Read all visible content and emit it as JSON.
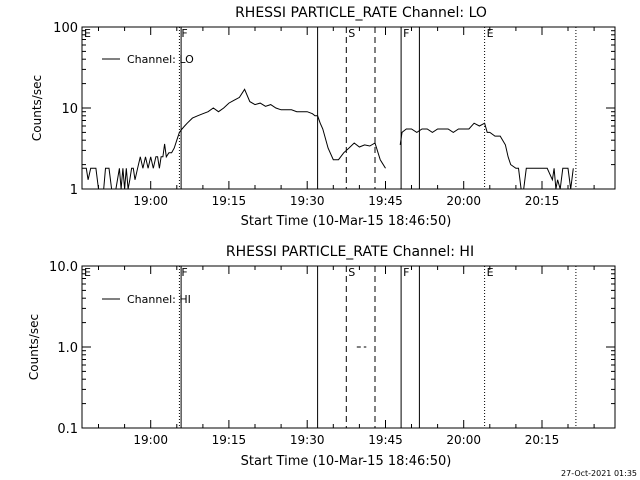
{
  "timestamp": "27-Oct-2021 01:35",
  "chart_data": [
    {
      "type": "line",
      "title": "RHESSI PARTICLE_RATE Channel: LO",
      "xlabel": "Start Time (10-Mar-15 18:46:50)",
      "ylabel": "Counts/sec",
      "yscale": "log",
      "ylim": [
        1,
        100
      ],
      "xlim": [
        "18:46:50",
        "20:29:00"
      ],
      "x_tick_labels": [
        "19:00",
        "19:15",
        "19:30",
        "19:45",
        "20:00",
        "20:15"
      ],
      "y_tick_labels": [
        "1",
        "10",
        "100"
      ],
      "legend": {
        "label": "Channel: LO",
        "position": "top-left"
      },
      "markers": [
        {
          "label": "E",
          "time": "18:46:50",
          "style": "dotted"
        },
        {
          "label": "F",
          "time": "19:05:30",
          "style": "dotted"
        },
        {
          "label": "",
          "time": "19:05:50",
          "style": "solid"
        },
        {
          "label": "",
          "time": "19:32:00",
          "style": "solid"
        },
        {
          "label": "S",
          "time": "19:37:30",
          "style": "dashed"
        },
        {
          "label": "",
          "time": "19:43:00",
          "style": "dashed"
        },
        {
          "label": "F",
          "time": "19:48:00",
          "style": "solid"
        },
        {
          "label": "",
          "time": "19:51:30",
          "style": "solid"
        },
        {
          "label": "E",
          "time": "20:04:00",
          "style": "dotted"
        },
        {
          "label": "",
          "time": "20:21:30",
          "style": "dotted"
        }
      ],
      "series": [
        {
          "name": "Channel: LO",
          "segments": [
            {
              "x": [
                "18:46:50",
                "18:47:40",
                "18:48:00",
                "18:48:30",
                "18:49:00",
                "18:49:30",
                "18:50:00",
                "18:51:00",
                "18:51:20",
                "18:52:00",
                "18:52:30",
                "18:53:20",
                "18:54:00",
                "18:54:20",
                "18:54:40",
                "18:55:00",
                "18:55:20",
                "18:55:40",
                "18:56:00",
                "18:56:20",
                "18:56:40",
                "18:57:00",
                "18:57:30",
                "18:58:00",
                "18:58:30",
                "18:59:00",
                "18:59:30",
                "19:00:00",
                "19:00:30",
                "19:01:00",
                "19:01:20",
                "19:01:40",
                "19:02:00",
                "19:02:20",
                "19:02:40",
                "19:03:00",
                "19:03:30",
                "19:04:00",
                "19:04:30",
                "19:05:00",
                "19:05:30",
                "19:06:00",
                "19:06:30",
                "19:07:00",
                "19:08:00",
                "19:09:00",
                "19:10:00",
                "19:11:00",
                "19:12:00",
                "19:13:00",
                "19:14:00",
                "19:15:00",
                "19:16:00",
                "19:17:00",
                "19:18:00",
                "19:19:00",
                "19:20:00",
                "19:21:00",
                "19:22:00",
                "19:23:00",
                "19:24:00",
                "19:25:00",
                "19:26:00",
                "19:27:00",
                "19:28:00",
                "19:29:00",
                "19:30:00",
                "19:31:00",
                "19:31:30",
                "19:32:00",
                "19:32:30",
                "19:33:00",
                "19:34:00",
                "19:35:00",
                "19:36:00",
                "19:37:00",
                "19:38:00",
                "19:39:00",
                "19:40:00",
                "19:41:00",
                "19:42:00",
                "19:43:00",
                "19:44:00",
                "19:45:00"
              ],
              "y": [
                1.8,
                1.8,
                1.3,
                1.8,
                1.8,
                1.8,
                1,
                1,
                1.8,
                1.8,
                1,
                1,
                1.8,
                1,
                1.8,
                1,
                1.8,
                1,
                1.3,
                1.8,
                1.8,
                1.3,
                1.8,
                2.5,
                1.8,
                2.5,
                1.8,
                2.5,
                1.8,
                2.5,
                2.5,
                1.8,
                2.5,
                2.5,
                3.6,
                2.5,
                2.8,
                2.8,
                3.2,
                4,
                5,
                5.5,
                6,
                6.5,
                7.5,
                8,
                8.5,
                9,
                10,
                9,
                10,
                11.5,
                12.5,
                13.5,
                17,
                12,
                11,
                11.5,
                10.5,
                11,
                10,
                9.5,
                9.5,
                9.5,
                9,
                9,
                9,
                8.5,
                8,
                8,
                6.5,
                5.5,
                3.2,
                2.3,
                2.3,
                2.8,
                3.2,
                3.7,
                3.3,
                3.5,
                3.4,
                3.7,
                2.3,
                1.8
              ]
            },
            {
              "x": [
                "19:47:50",
                "19:48:10",
                "19:49:00",
                "19:50:00",
                "19:51:00",
                "19:52:00",
                "19:53:00",
                "19:54:00",
                "19:55:00",
                "19:56:00",
                "19:57:00",
                "19:58:00",
                "19:59:00",
                "20:00:00",
                "20:01:00",
                "20:02:00",
                "20:03:00",
                "20:04:00",
                "20:04:30",
                "20:05:00",
                "20:06:00",
                "20:07:00",
                "20:08:00",
                "20:08:30",
                "20:09:00",
                "20:10:00",
                "20:10:30",
                "20:11:00",
                "20:11:30",
                "20:12:00",
                "20:12:30",
                "20:13:00",
                "20:13:30",
                "20:14:00",
                "20:14:30",
                "20:15:00",
                "20:16:00",
                "20:17:00",
                "20:17:20",
                "20:17:40",
                "20:18:00",
                "20:18:30",
                "20:19:00",
                "20:19:30",
                "20:20:00",
                "20:20:30",
                "20:21:00"
              ],
              "y": [
                3.5,
                5,
                5.5,
                5.5,
                5,
                5.5,
                5.5,
                5,
                5.5,
                5.5,
                5.5,
                5,
                5.5,
                5.5,
                5.5,
                6.5,
                6,
                6.5,
                5,
                5,
                4.5,
                4.5,
                3.5,
                2.5,
                2,
                1.8,
                1.8,
                1,
                1,
                1.8,
                1.8,
                1.8,
                1.8,
                1.8,
                1.8,
                1.8,
                1.8,
                1.3,
                1.8,
                1,
                1.3,
                1,
                1.8,
                1.8,
                1.8,
                1,
                1.8
              ]
            }
          ]
        }
      ]
    },
    {
      "type": "line",
      "title": "RHESSI PARTICLE_RATE Channel: HI",
      "xlabel": "Start Time (10-Mar-15 18:46:50)",
      "ylabel": "Counts/sec",
      "yscale": "log",
      "ylim": [
        0.1,
        10
      ],
      "xlim": [
        "18:46:50",
        "20:29:00"
      ],
      "x_tick_labels": [
        "19:00",
        "19:15",
        "19:30",
        "19:45",
        "20:00",
        "20:15"
      ],
      "y_tick_labels": [
        "0.1",
        "1.0",
        "10.0"
      ],
      "legend": {
        "label": "Channel: HI",
        "position": "top-left"
      },
      "markers": [
        {
          "label": "E",
          "time": "18:46:50",
          "style": "dotted"
        },
        {
          "label": "F",
          "time": "19:05:30",
          "style": "dotted"
        },
        {
          "label": "",
          "time": "19:05:50",
          "style": "solid"
        },
        {
          "label": "",
          "time": "19:32:00",
          "style": "solid"
        },
        {
          "label": "S",
          "time": "19:37:30",
          "style": "dashed"
        },
        {
          "label": "",
          "time": "19:43:00",
          "style": "dashed"
        },
        {
          "label": "F",
          "time": "19:48:00",
          "style": "solid"
        },
        {
          "label": "",
          "time": "19:51:30",
          "style": "solid"
        },
        {
          "label": "E",
          "time": "20:04:00",
          "style": "dotted"
        },
        {
          "label": "",
          "time": "20:21:30",
          "style": "dotted"
        }
      ],
      "series": [
        {
          "name": "Channel: HI",
          "segments": [
            {
              "x": [
                "19:39:30",
                "19:41:20"
              ],
              "y": [
                1,
                1
              ],
              "style": "dashed"
            }
          ]
        }
      ]
    }
  ]
}
